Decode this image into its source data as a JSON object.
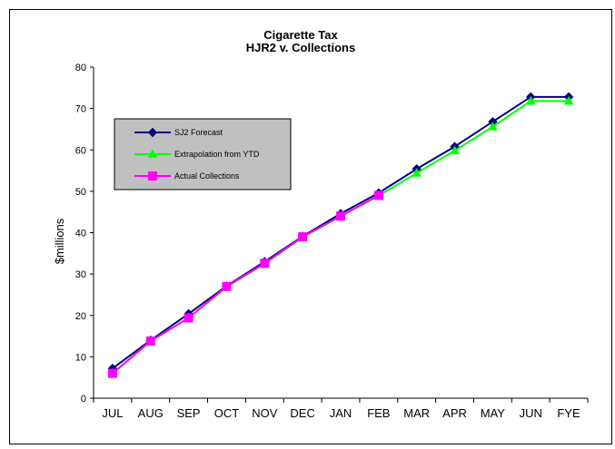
{
  "chart_data": {
    "type": "line",
    "title": "Cigarette Tax",
    "subtitle": "HJR2 v. Collections",
    "xlabel": "",
    "ylabel": "$millions",
    "ylim": [
      0,
      80
    ],
    "yticks": [
      0,
      10,
      20,
      30,
      40,
      50,
      60,
      70,
      80
    ],
    "categories": [
      "JUL",
      "AUG",
      "SEP",
      "OCT",
      "NOV",
      "DEC",
      "JAN",
      "FEB",
      "MAR",
      "APR",
      "MAY",
      "JUN",
      "FYE"
    ],
    "grid": false,
    "legend_position": "top-left",
    "series": [
      {
        "name": "SJ2 Forecast",
        "color": "#000080",
        "marker": "diamond",
        "values": [
          7.2,
          14.0,
          20.4,
          27.1,
          33.0,
          39.1,
          44.6,
          49.6,
          55.4,
          60.8,
          66.8,
          72.8,
          72.8
        ]
      },
      {
        "name": "Extrapolation from YTD",
        "color": "#00ff00",
        "marker": "triangle",
        "values": [
          6.0,
          13.8,
          19.4,
          26.9,
          32.5,
          38.9,
          44.0,
          48.9,
          54.4,
          59.8,
          65.6,
          71.8,
          71.8
        ]
      },
      {
        "name": "Actual Collections",
        "color": "#ff00ff",
        "marker": "square",
        "values": [
          6.0,
          13.8,
          19.4,
          27.0,
          32.6,
          39.0,
          44.0,
          49.0,
          null,
          null,
          null,
          null,
          null
        ]
      }
    ]
  }
}
